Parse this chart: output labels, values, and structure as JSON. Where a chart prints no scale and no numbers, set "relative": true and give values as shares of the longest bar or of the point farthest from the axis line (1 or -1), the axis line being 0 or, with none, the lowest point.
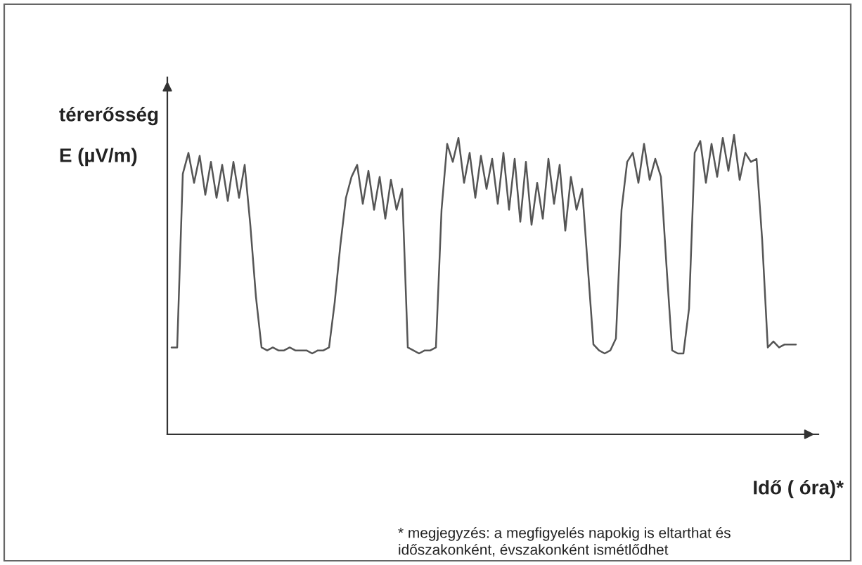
{
  "chart_data": {
    "type": "line",
    "relative": true,
    "ylabel": "térerősség\nE (µV/m)",
    "xlabel": "Idő ( óra)*",
    "annotations": [
      "* megjegyzés: a megfigyelés napokig is eltarthat és\nidőszakonként, évszakonként ismétlődhet"
    ],
    "categories": [
      null,
      null,
      null,
      null,
      null,
      null,
      null,
      null,
      null,
      null,
      null,
      null,
      null,
      null,
      null,
      null,
      null,
      null,
      null,
      null,
      null,
      null,
      null,
      null,
      null,
      null,
      null,
      null,
      null,
      null,
      null,
      null,
      null,
      null,
      null,
      null,
      null,
      null,
      null,
      null,
      null,
      null,
      null,
      null,
      null,
      null,
      null,
      null,
      null,
      null,
      null,
      null,
      null,
      null,
      null,
      null,
      null,
      null,
      null,
      null,
      null,
      null,
      null,
      null,
      null,
      null,
      null,
      null,
      null,
      null,
      null,
      null,
      null,
      null,
      null,
      null,
      null,
      null,
      null,
      null,
      null,
      null,
      null,
      null,
      null,
      null,
      null,
      null,
      null,
      null,
      null,
      null,
      null,
      null,
      null,
      null,
      null,
      null,
      null,
      null,
      null,
      null,
      null,
      null,
      null,
      null,
      null,
      null,
      null,
      null,
      null,
      null
    ],
    "series": [
      {
        "color": "#555555",
        "values": [
          0.29,
          0.29,
          0.87,
          0.94,
          0.84,
          0.93,
          0.8,
          0.91,
          0.79,
          0.9,
          0.78,
          0.91,
          0.79,
          0.9,
          0.7,
          0.46,
          0.29,
          0.28,
          0.29,
          0.28,
          0.28,
          0.29,
          0.28,
          0.28,
          0.28,
          0.27,
          0.28,
          0.28,
          0.29,
          0.44,
          0.63,
          0.79,
          0.86,
          0.9,
          0.77,
          0.88,
          0.75,
          0.86,
          0.72,
          0.85,
          0.75,
          0.82,
          0.29,
          0.28,
          0.27,
          0.28,
          0.28,
          0.29,
          0.75,
          0.97,
          0.91,
          0.99,
          0.84,
          0.94,
          0.79,
          0.93,
          0.82,
          0.92,
          0.77,
          0.94,
          0.75,
          0.92,
          0.71,
          0.91,
          0.7,
          0.84,
          0.72,
          0.92,
          0.77,
          0.9,
          0.68,
          0.86,
          0.75,
          0.82,
          0.56,
          0.3,
          0.28,
          0.27,
          0.28,
          0.32,
          0.75,
          0.91,
          0.94,
          0.84,
          0.97,
          0.85,
          0.92,
          0.86,
          0.56,
          0.28,
          0.27,
          0.27,
          0.42,
          0.94,
          0.98,
          0.84,
          0.97,
          0.86,
          0.99,
          0.88,
          1.0,
          0.85,
          0.94,
          0.91,
          0.92,
          0.65,
          0.29,
          0.31,
          0.29,
          0.3,
          0.3,
          0.3
        ]
      }
    ]
  }
}
